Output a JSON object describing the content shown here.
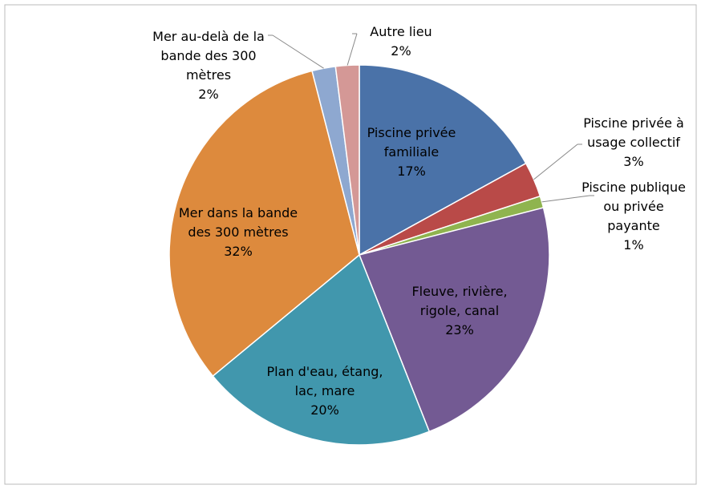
{
  "chart_data": {
    "type": "pie",
    "categories": [
      "Piscine privée familiale",
      "Piscine privée à usage collectif",
      "Piscine publique ou privée payante",
      "Fleuve, rivière, rigole, canal",
      "Plan d'eau, étang, lac, mare",
      "Mer dans la bande des 300 mètres",
      "Mer au-delà de la bande des 300 mètres",
      "Autre lieu"
    ],
    "values": [
      17,
      3,
      1,
      23,
      20,
      32,
      2,
      2
    ],
    "value_labels": [
      "17%",
      "3%",
      "1%",
      "23%",
      "20%",
      "32%",
      "2%",
      "2%"
    ],
    "colors": [
      "#4a72a8",
      "#b94a48",
      "#8fb44f",
      "#735a93",
      "#4197ad",
      "#dd8a3d",
      "#8ea8d0",
      "#d49896"
    ]
  }
}
